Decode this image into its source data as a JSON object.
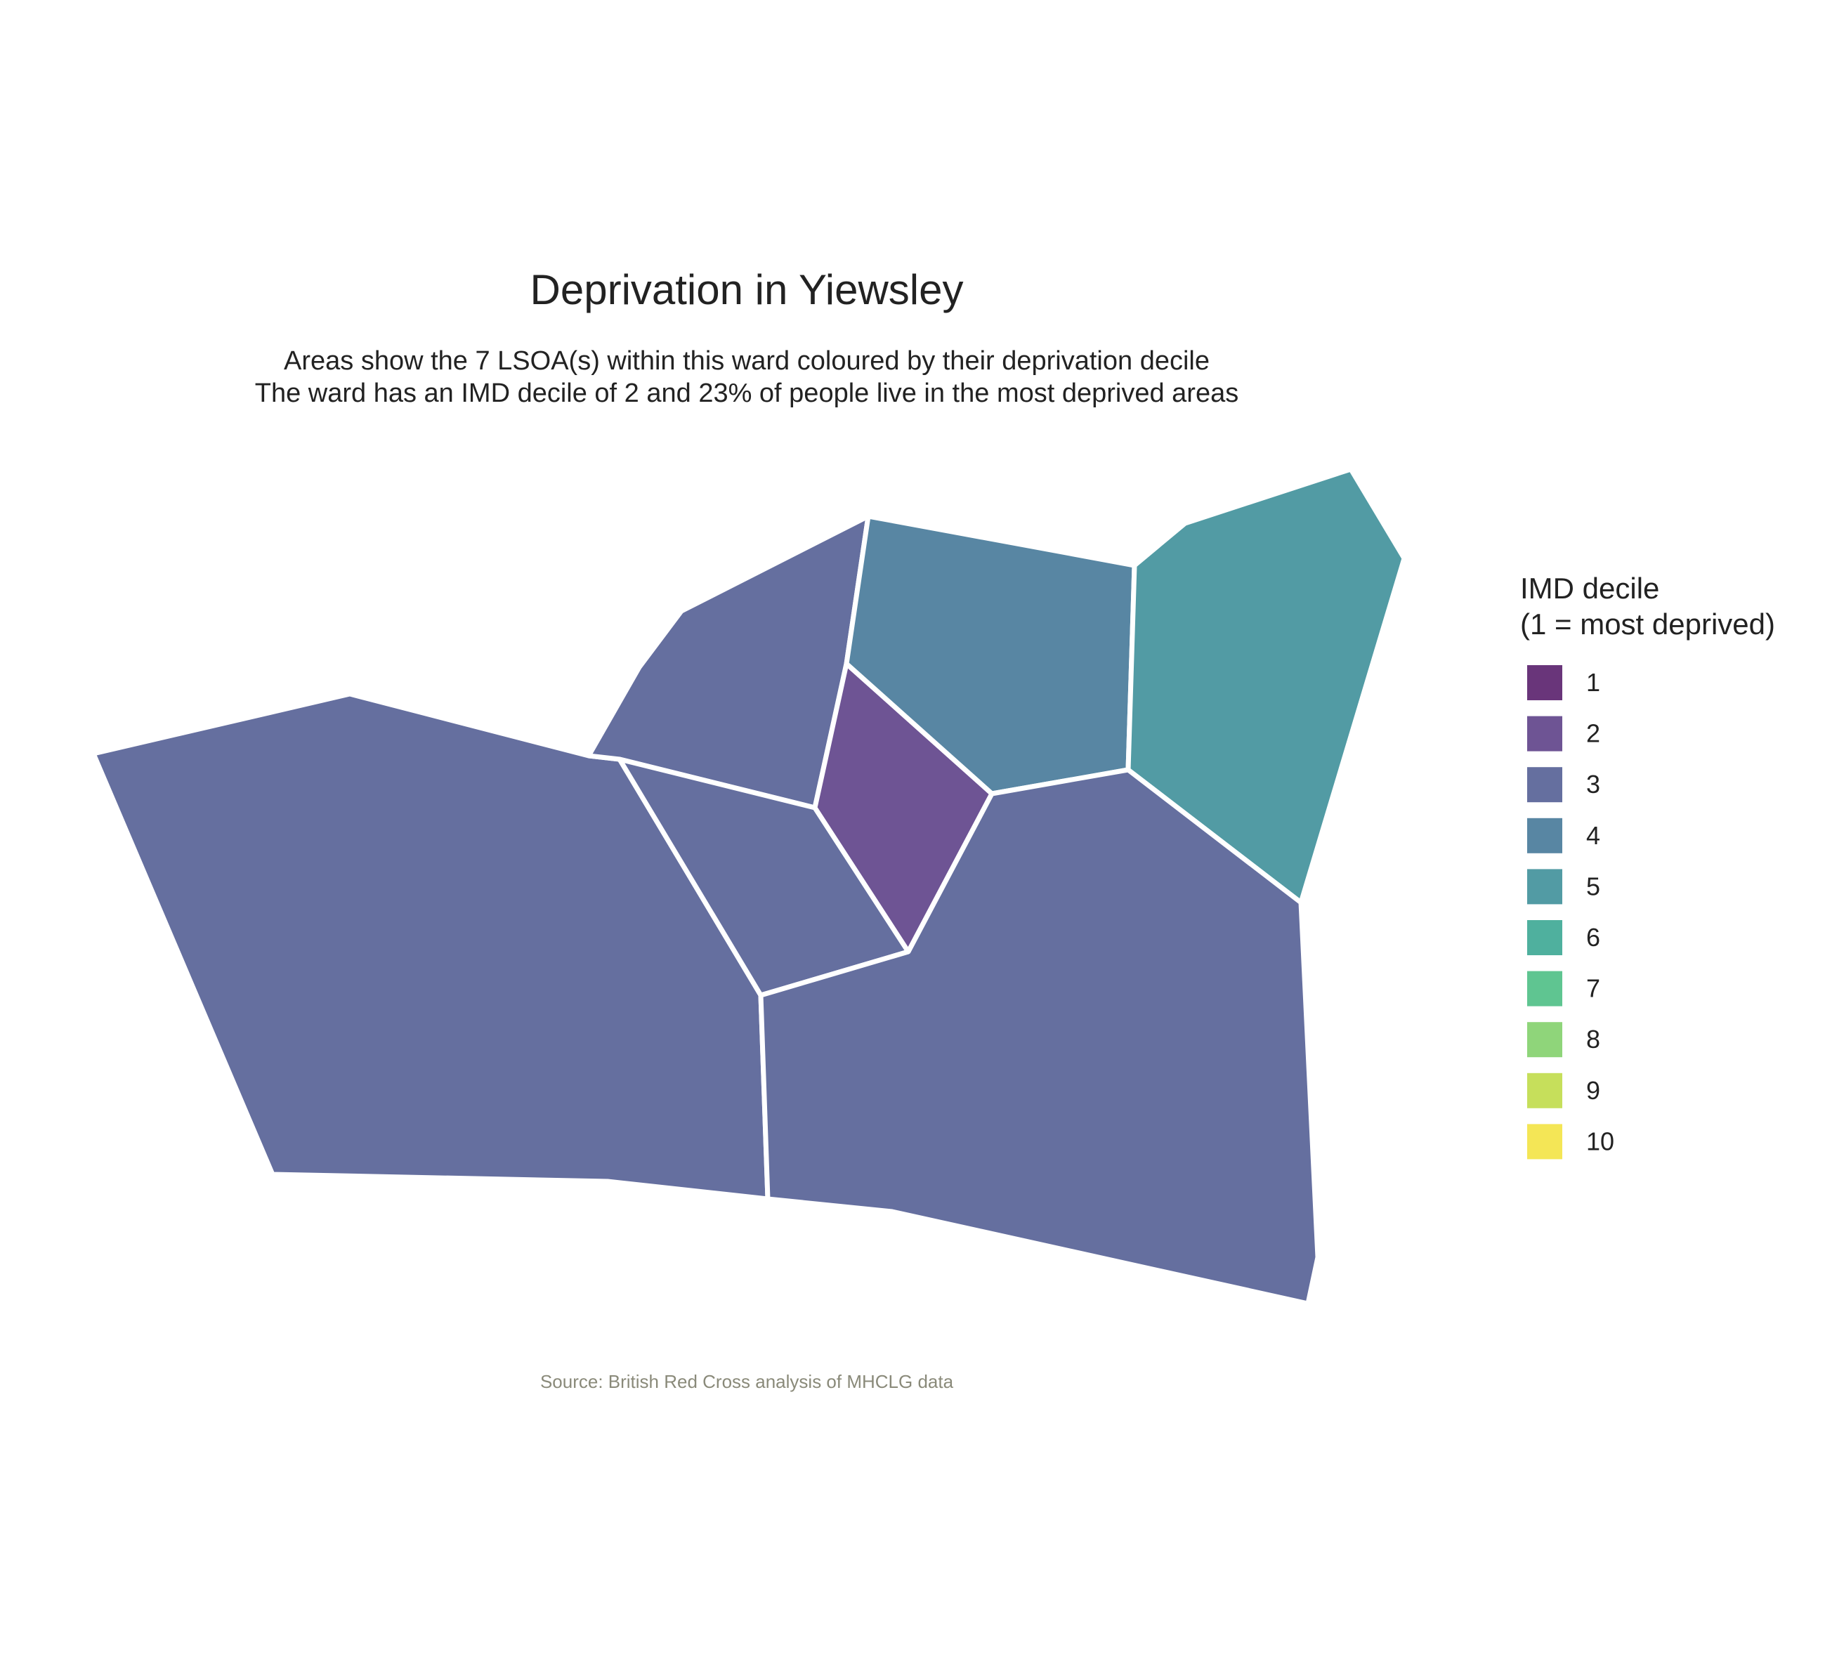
{
  "title": "Deprivation in Yiewsley",
  "subtitle_line1": "Areas show the 7 LSOA(s) within this ward coloured by their deprivation decile",
  "subtitle_line2": "The ward has an IMD decile of 2 and 23% of people live in the most deprived areas",
  "caption": "Source: British Red Cross analysis of MHCLG data",
  "legend": {
    "title_line1": "IMD decile",
    "title_line2": "(1 = most deprived)",
    "items": [
      {
        "label": "1",
        "color": "#69357a"
      },
      {
        "label": "2",
        "color": "#6e5494"
      },
      {
        "label": "3",
        "color": "#656f9f"
      },
      {
        "label": "4",
        "color": "#5886a3"
      },
      {
        "label": "5",
        "color": "#529ba4"
      },
      {
        "label": "6",
        "color": "#4fb09e"
      },
      {
        "label": "7",
        "color": "#5fc591"
      },
      {
        "label": "8",
        "color": "#8fd57a"
      },
      {
        "label": "9",
        "color": "#c6df5b"
      },
      {
        "label": "10",
        "color": "#f4e656"
      }
    ]
  },
  "chart_data": {
    "type": "choropleth",
    "areas": [
      {
        "decile": 3
      },
      {
        "decile": 3
      },
      {
        "decile": 3
      },
      {
        "decile": 2
      },
      {
        "decile": 4
      },
      {
        "decile": 5
      },
      {
        "decile": 3
      }
    ]
  }
}
